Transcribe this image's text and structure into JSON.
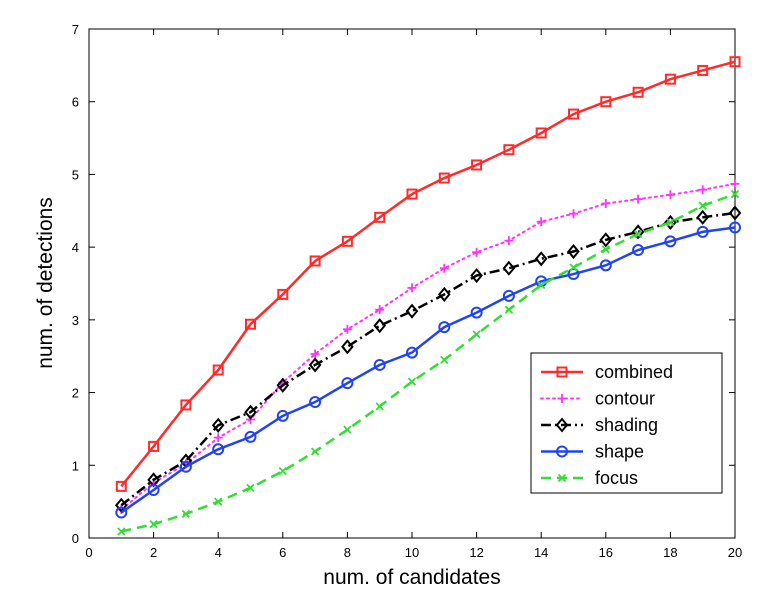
{
  "chart_data": {
    "type": "line",
    "xlabel": "num. of candidates",
    "ylabel": "num. of detections",
    "xlim": [
      0,
      20
    ],
    "ylim": [
      0,
      7
    ],
    "xticks": [
      "0",
      "2",
      "4",
      "6",
      "8",
      "10",
      "12",
      "14",
      "16",
      "18",
      "20"
    ],
    "yticks": [
      "0",
      "1",
      "2",
      "3",
      "4",
      "5",
      "6",
      "7"
    ],
    "grid": false,
    "legend_position": "bottom-right",
    "x": [
      1,
      2,
      3,
      4,
      5,
      6,
      7,
      8,
      9,
      10,
      11,
      12,
      13,
      14,
      15,
      16,
      17,
      18,
      19,
      20
    ],
    "series": [
      {
        "name": "combined",
        "color": "#ff2a2a",
        "line_style": "solid",
        "marker": "square",
        "values": [
          0.71,
          1.26,
          1.83,
          2.31,
          2.94,
          3.35,
          3.81,
          4.08,
          4.41,
          4.73,
          4.95,
          5.13,
          5.34,
          5.57,
          5.83,
          6.0,
          6.13,
          6.31,
          6.43,
          6.55
        ]
      },
      {
        "name": "contour",
        "color": "#ff33ff",
        "line_style": "dotted",
        "marker": "plus",
        "values": [
          0.39,
          0.76,
          1.02,
          1.38,
          1.63,
          2.14,
          2.53,
          2.87,
          3.14,
          3.44,
          3.71,
          3.93,
          4.09,
          4.35,
          4.46,
          4.6,
          4.66,
          4.72,
          4.79,
          4.87
        ]
      },
      {
        "name": "shading",
        "color": "#000000",
        "line_style": "dashdot",
        "marker": "diamond",
        "values": [
          0.45,
          0.8,
          1.06,
          1.55,
          1.73,
          2.1,
          2.38,
          2.63,
          2.92,
          3.12,
          3.35,
          3.61,
          3.71,
          3.84,
          3.94,
          4.1,
          4.21,
          4.34,
          4.41,
          4.47
        ]
      },
      {
        "name": "shape",
        "color": "#2244ee",
        "line_style": "solid",
        "marker": "circle",
        "values": [
          0.35,
          0.66,
          0.98,
          1.22,
          1.39,
          1.68,
          1.87,
          2.13,
          2.38,
          2.55,
          2.9,
          3.1,
          3.33,
          3.53,
          3.63,
          3.75,
          3.96,
          4.08,
          4.21,
          4.27
        ]
      },
      {
        "name": "focus",
        "color": "#33dd33",
        "line_style": "dashed",
        "marker": "x",
        "values": [
          0.09,
          0.19,
          0.33,
          0.5,
          0.69,
          0.92,
          1.19,
          1.49,
          1.81,
          2.15,
          2.45,
          2.8,
          3.14,
          3.48,
          3.72,
          3.97,
          4.18,
          4.34,
          4.57,
          4.73
        ]
      }
    ]
  }
}
